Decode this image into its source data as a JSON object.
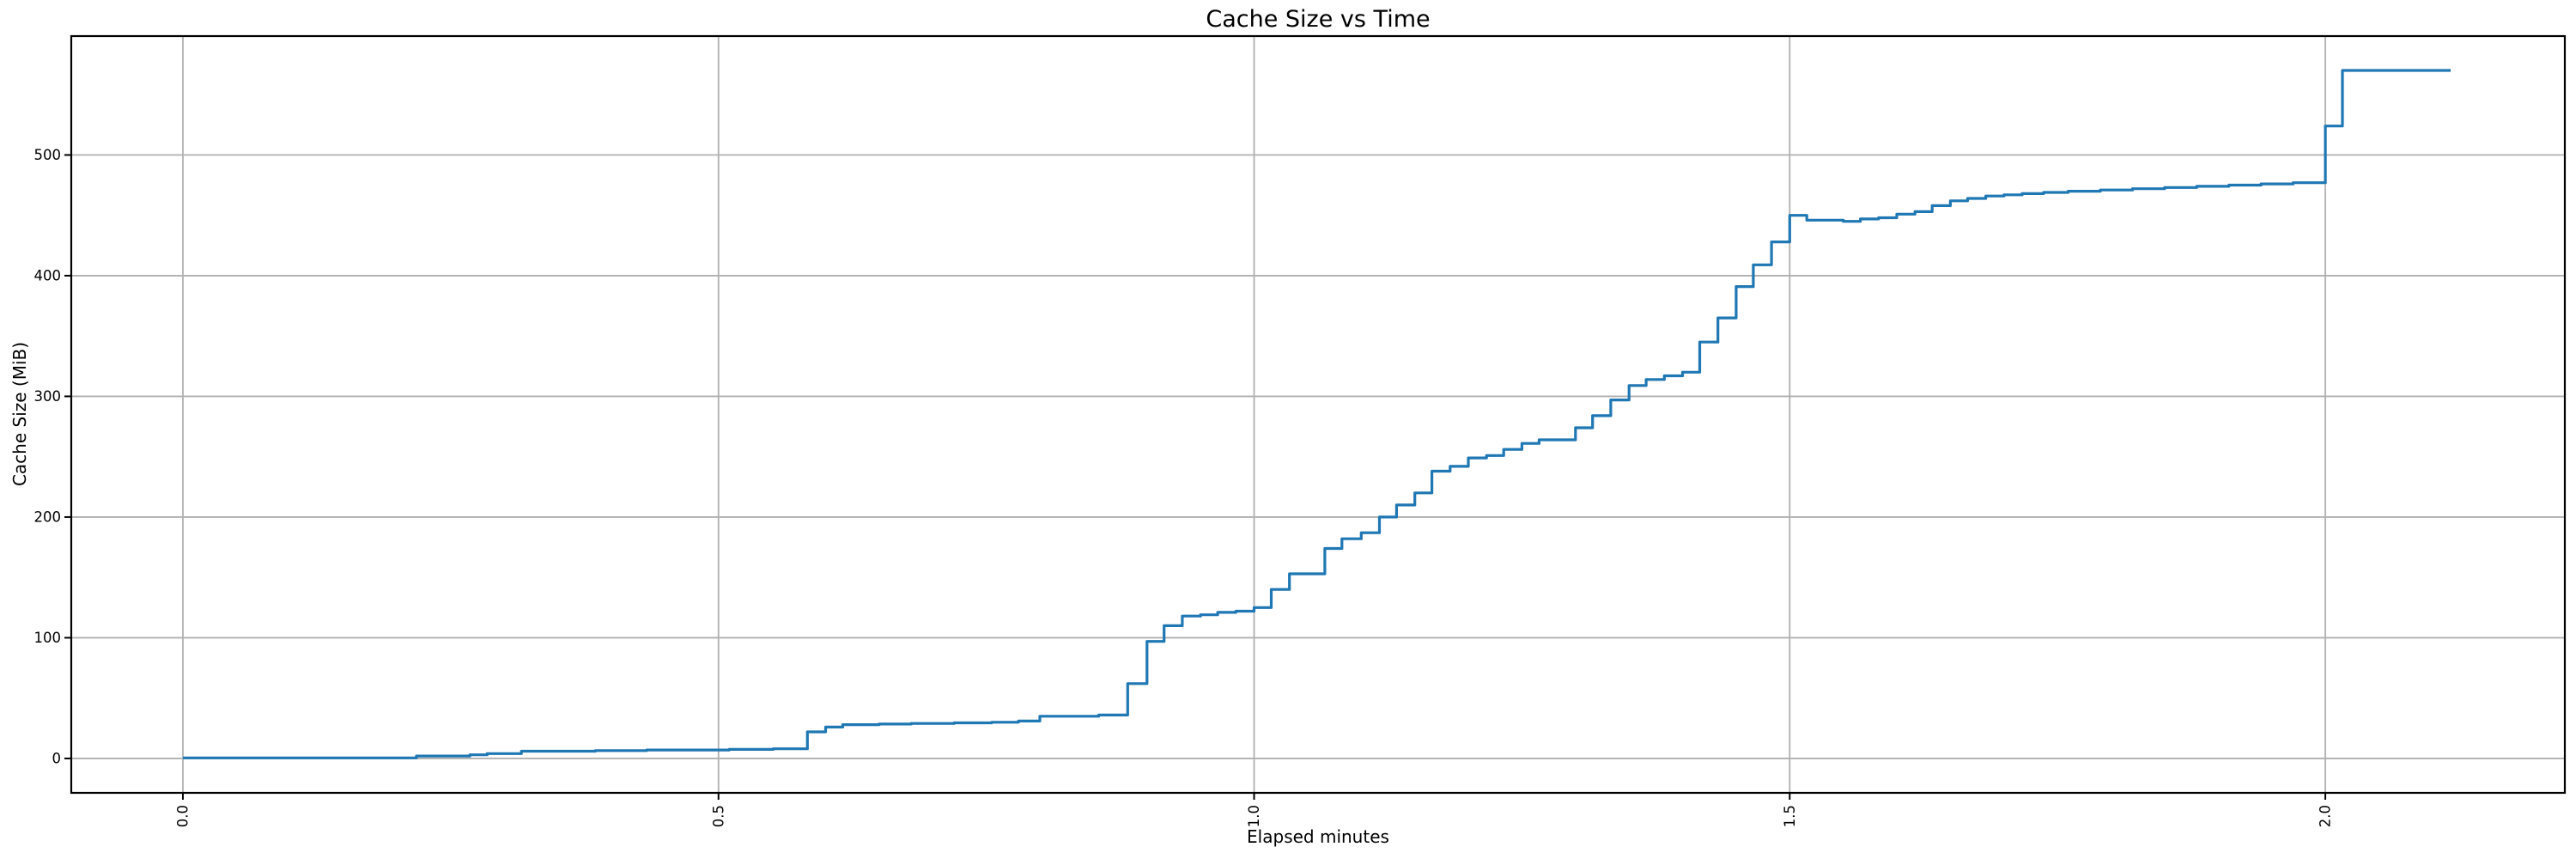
{
  "chart_data": {
    "type": "line",
    "step_mode": "post",
    "title": "Cache Size vs Time",
    "xlabel": "Elapsed minutes",
    "ylabel": "Cache Size (MiB)",
    "legend": "none",
    "grid": true,
    "line_color": "#1f77b4",
    "grid_color": "#b0b0b0",
    "spine_color": "#000000",
    "xlim": [
      -0.1042,
      2.2236
    ],
    "ylim": [
      -28.5,
      598.5
    ],
    "x_ticks": [
      {
        "v": 0.0,
        "label": "0.0"
      },
      {
        "v": 0.5,
        "label": "0.5"
      },
      {
        "v": 1.0,
        "label": "1.0"
      },
      {
        "v": 1.5,
        "label": "1.5"
      },
      {
        "v": 2.0,
        "label": "2.0"
      }
    ],
    "y_ticks": [
      {
        "v": 0,
        "label": "0"
      },
      {
        "v": 100,
        "label": "100"
      },
      {
        "v": 200,
        "label": "200"
      },
      {
        "v": 300,
        "label": "300"
      },
      {
        "v": 400,
        "label": "400"
      },
      {
        "v": 500,
        "label": "500"
      }
    ],
    "x_end": 2.117,
    "points": [
      [
        0.0,
        0.5
      ],
      [
        0.218,
        2
      ],
      [
        0.268,
        3
      ],
      [
        0.284,
        4
      ],
      [
        0.316,
        6
      ],
      [
        0.385,
        6.5
      ],
      [
        0.433,
        7
      ],
      [
        0.51,
        7.5
      ],
      [
        0.551,
        8
      ],
      [
        0.583,
        22
      ],
      [
        0.6,
        26
      ],
      [
        0.616,
        28
      ],
      [
        0.65,
        28.5
      ],
      [
        0.68,
        29
      ],
      [
        0.72,
        29.5
      ],
      [
        0.755,
        30
      ],
      [
        0.78,
        31
      ],
      [
        0.8,
        35
      ],
      [
        0.855,
        36
      ],
      [
        0.882,
        62
      ],
      [
        0.9,
        97
      ],
      [
        0.916,
        110
      ],
      [
        0.933,
        118
      ],
      [
        0.95,
        119
      ],
      [
        0.966,
        121
      ],
      [
        0.983,
        122
      ],
      [
        1.0,
        125
      ],
      [
        1.016,
        140
      ],
      [
        1.033,
        153
      ],
      [
        1.066,
        174
      ],
      [
        1.082,
        182
      ],
      [
        1.1,
        187
      ],
      [
        1.117,
        200
      ],
      [
        1.133,
        210
      ],
      [
        1.15,
        220
      ],
      [
        1.166,
        238
      ],
      [
        1.183,
        242
      ],
      [
        1.2,
        249
      ],
      [
        1.217,
        251
      ],
      [
        1.233,
        256
      ],
      [
        1.25,
        261
      ],
      [
        1.266,
        264
      ],
      [
        1.3,
        274
      ],
      [
        1.316,
        284
      ],
      [
        1.333,
        297
      ],
      [
        1.35,
        309
      ],
      [
        1.366,
        314
      ],
      [
        1.383,
        317
      ],
      [
        1.4,
        320
      ],
      [
        1.416,
        345
      ],
      [
        1.433,
        365
      ],
      [
        1.45,
        391
      ],
      [
        1.466,
        409
      ],
      [
        1.483,
        428
      ],
      [
        1.5,
        450
      ],
      [
        1.516,
        446
      ],
      [
        1.55,
        445
      ],
      [
        1.566,
        447
      ],
      [
        1.583,
        448
      ],
      [
        1.6,
        451
      ],
      [
        1.617,
        453
      ],
      [
        1.633,
        458
      ],
      [
        1.65,
        462
      ],
      [
        1.666,
        464
      ],
      [
        1.683,
        466
      ],
      [
        1.7,
        467
      ],
      [
        1.717,
        468
      ],
      [
        1.737,
        469
      ],
      [
        1.76,
        470
      ],
      [
        1.79,
        471
      ],
      [
        1.82,
        472
      ],
      [
        1.85,
        473
      ],
      [
        1.88,
        474
      ],
      [
        1.91,
        475
      ],
      [
        1.94,
        476
      ],
      [
        1.97,
        477
      ],
      [
        2.0,
        524
      ],
      [
        2.016,
        570
      ],
      [
        2.1,
        570
      ]
    ]
  }
}
